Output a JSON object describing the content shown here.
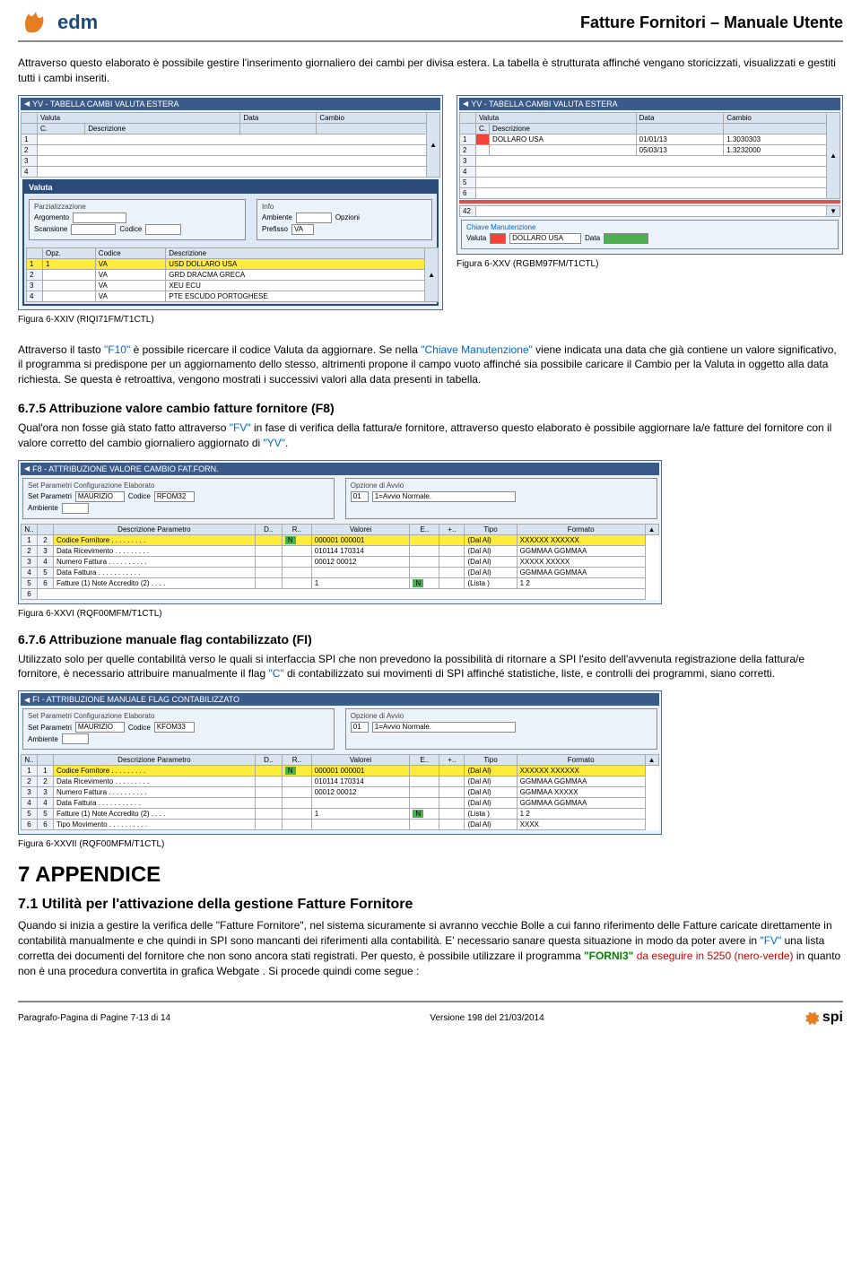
{
  "header": {
    "logo_text": "edm",
    "title": "Fatture Fornitori – Manuale Utente"
  },
  "intro": "Attraverso questo elaborato è possibile gestire l'inserimento giornaliero dei cambi per divisa estera.  La tabella è strutturata affinché vengano storicizzati, visualizzati e gestiti tutti i cambi inseriti.",
  "fig24": {
    "title": "YV - TABELLA CAMBI VALUTA ESTERA",
    "col1": "Valuta",
    "col2": "Data",
    "col3": "Cambio",
    "sub_desc": "Descrizione",
    "sub_c": "C.",
    "popup_title": "Valuta",
    "popup_parz": "Parzializzazione",
    "popup_arg": "Argomento",
    "popup_scan": "Scansione",
    "popup_cod": "Codice",
    "popup_info": "Info",
    "popup_amb": "Ambiente",
    "popup_opz": "Opzioni",
    "popup_pref": "Prefisso",
    "popup_pref_v": "VA",
    "th_opz": "Opz.",
    "th_cod": "Codice",
    "th_desc": "Descrizione",
    "r1_c": "VA",
    "r1_d": "USD DOLLARO USA",
    "r2_c": "VA",
    "r2_d": "GRD DRACMA GRECA",
    "r3_c": "VA",
    "r3_d": "XEU ECU",
    "r4_c": "VA",
    "r4_d": "PTE ESCUDO PORTOGHESE",
    "caption": "Figura 6-XXIV  (RIQI71FM/T1CTL)"
  },
  "fig25": {
    "title": "YV - TABELLA CAMBI VALUTA ESTERA",
    "col1": "Valuta",
    "col2": "Data",
    "col3": "Cambio",
    "sub_desc": "Descrizione",
    "sub_c": "C.",
    "r1_v": "DOLLARO USA",
    "r1_d": "01/01/13",
    "r1_c": "1.3030303",
    "r2_d": "05/03/13",
    "r2_c": "1.3232000",
    "n42": "42",
    "chiave": "Chiave Manutenzione",
    "chiave_val": "Valuta",
    "chiave_dollar": "DOLLARO USA",
    "chiave_data": "Data",
    "caption": "Figura 6-XXV  (RGBM97FM/T1CTL)"
  },
  "para2_a": "Attraverso il tasto ",
  "para2_f10": "\"F10\"",
  "para2_b": " è possibile ricercare il codice Valuta da aggiornare.  Se nella ",
  "para2_chiave": "\"Chiave Manutenzione\"",
  "para2_c": " viene indicata una data che già contiene un valore significativo, il programma si predispone per un aggiornamento dello stesso, altrimenti propone il campo vuoto affinché sia possibile caricare il Cambio per la Valuta in oggetto alla data richiesta.  Se questa è retroattiva, vengono mostrati i successivi valori alla data presenti in tabella.",
  "s675": {
    "heading": "6.7.5  Attribuzione valore cambio fatture fornitore (F8)",
    "p_a": "Qual'ora non fosse già stato fatto attraverso ",
    "p_fv": "\"FV\"",
    "p_b": " in fase di verifica della fattura/e fornitore, attraverso questo elaborato è possibile aggiornare la/e fatture del fornitore con il valore corretto del cambio giornaliero aggiornato di ",
    "p_yv": "\"YV\"",
    "p_c": "."
  },
  "fig26": {
    "title": "F8 - ATTRIBUZIONE VALORE CAMBIO FAT.FORN.",
    "set_parm": "Set Parametri Configurazione Elaborato",
    "set_line": "Set Parametri",
    "set_user": "MAURIZIO",
    "set_codlbl": "Codice",
    "set_cod": "RFOM32",
    "amb": "Ambiente",
    "opz": "Opzione di Avvio",
    "opz_v": "01",
    "opz_t": "1=Avvio Normale.",
    "th_n": "N..",
    "th_desc": "Descrizione Parametro",
    "th_d": "D..",
    "th_r": "R..",
    "th_val": "Valorei",
    "th_e": "E..",
    "th_p": "+..",
    "th_tipo": "Tipo",
    "th_fmt": "Formato",
    "rows": [
      {
        "n": "1",
        "num": "2",
        "desc": "Codice Fornitore . . . . . . . . .",
        "r": "N",
        "val": "000001 000001",
        "tipo": "(Dal  Al)",
        "fmt": "XXXXXX XXXXXX"
      },
      {
        "n": "2",
        "num": "3",
        "desc": "Data Ricevimento . . . . . . . . .",
        "val": "010114 170314",
        "tipo": "(Dal  Al)",
        "fmt": "GGMMAA GGMMAA"
      },
      {
        "n": "3",
        "num": "4",
        "desc": "Numero Fattura . . . . . . . . . .",
        "val": "00012 00012",
        "tipo": "(Dal  Al)",
        "fmt": "XXXXX XXXXX"
      },
      {
        "n": "4",
        "num": "5",
        "desc": "Data Fattura . . . . . . . . . . .",
        "tipo": "(Dal  Al)",
        "fmt": "GGMMAA GGMMAA"
      },
      {
        "n": "5",
        "num": "6",
        "desc": "Fatture (1) Note Accredito (2) . . . .",
        "val": "1",
        "e": "N",
        "tipo": "(Lista )",
        "fmt": "1 2"
      }
    ],
    "caption": "Figura 6-XXVI  (RQF00MFM/T1CTL)"
  },
  "s676": {
    "heading": "6.7.6  Attribuzione manuale flag contabilizzato (FI)",
    "p_a": "Utilizzato solo per quelle contabilità verso le quali si interfaccia SPI che non prevedono la possibilità di ritornare a SPI l'esito dell'avvenuta registrazione della fattura/e fornitore, è necessario attribuire manualmente il flag ",
    "p_c": "\"C\"",
    "p_b": " di contabilizzato sui movimenti di SPI affinché  statistiche, liste, e controlli dei programmi, siano corretti."
  },
  "fig27": {
    "title": "FI - ATTRIBUZIONE MANUALE FLAG CONTABILIZZATO",
    "set_parm": "Set Parametri Configurazione Elaborato",
    "set_line": "Set Parametri",
    "set_user": "MAURIZIO",
    "set_codlbl": "Codice",
    "set_cod": "KFOM33",
    "amb": "Ambiente",
    "opz": "Opzione di Avvio",
    "opz_v": "01",
    "opz_t": "1=Avvio Normale.",
    "th_n": "N..",
    "th_desc": "Descrizione Parametro",
    "th_d": "D..",
    "th_r": "R..",
    "th_val": "Valorei",
    "th_e": "E..",
    "th_p": "+..",
    "th_tipo": "Tipo",
    "th_fmt": "Formato",
    "rows": [
      {
        "n": "1",
        "num": "1",
        "desc": "Codice Fornitore . . . . . . . . .",
        "r": "N",
        "val": "000001 000001",
        "tipo": "(Dal  Al)",
        "fmt": "XXXXXX XXXXXX"
      },
      {
        "n": "2",
        "num": "2",
        "desc": "Data Ricevimento . . . . . . . . .",
        "val": "010114 170314",
        "tipo": "(Dal  Al)",
        "fmt": "GGMMAA GGMMAA"
      },
      {
        "n": "3",
        "num": "3",
        "desc": "Numero Fattura . . . . . . . . . .",
        "val": "00012 00012",
        "tipo": "(Dal  Al)",
        "fmt": "GGMMAA XXXXX"
      },
      {
        "n": "4",
        "num": "4",
        "desc": "Data Fattura . . . . . . . . . . .",
        "tipo": "(Dal  Al)",
        "fmt": "GGMMAA GGMMAA"
      },
      {
        "n": "5",
        "num": "5",
        "desc": "Fatture (1) Note Accredito (2) . . . .",
        "val": "1",
        "e": "N",
        "tipo": "(Lista )",
        "fmt": "1 2"
      },
      {
        "n": "6",
        "num": "6",
        "desc": "Tipo Movimento . . . . . . . . . .",
        "tipo": "(Dal  Al)",
        "fmt": "XXXX"
      }
    ],
    "caption": "Figura 6-XXVII  (RQF00MFM/T1CTL)"
  },
  "appendix": {
    "h1": "7  APPENDICE",
    "h2": "7.1 Utilità per l'attivazione della gestione Fatture Fornitore",
    "p_a": "Quando si inizia a gestire la verifica delle \"Fatture Fornitore\", nel sistema sicuramente si avranno vecchie Bolle a cui fanno riferimento delle Fatture caricate direttamente in contabilità manualmente e che quindi in SPI sono mancanti dei riferimenti alla contabilità.   E' necessario sanare questa situazione in modo da poter avere in ",
    "p_fv": "\"FV\"",
    "p_b": " una lista corretta dei documenti del fornitore che non sono ancora stati registrati.  Per questo, è possibile utilizzare il programma ",
    "p_forni3": "\"FORNI3\"",
    "p_c": " ",
    "p_red": "da eseguire in 5250 (nero-verde)",
    "p_d": " in quanto non è una procedura convertita in grafica Webgate .    Si procede quindi come segue :"
  },
  "footer": {
    "left": "Paragrafo-Pagina di Pagine 7-13 di 14",
    "center": "Versione 198 del 21/03/2014",
    "right": "spi"
  }
}
